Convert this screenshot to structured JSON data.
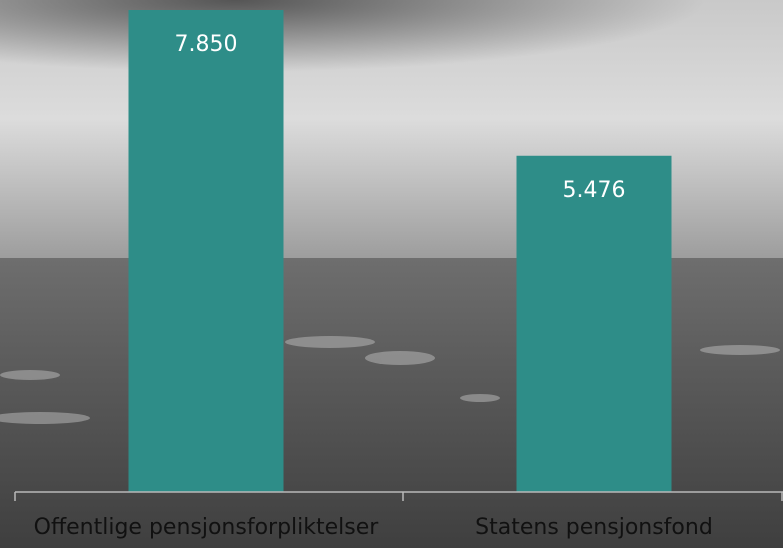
{
  "chart_data": {
    "type": "bar",
    "categories": [
      "Offentlige pensjonsforpliktelser",
      "Statens pensjonsfond"
    ],
    "values": [
      7850,
      5476
    ],
    "value_labels": [
      "7.850",
      "5.476"
    ],
    "color": "#2e8d88"
  }
}
